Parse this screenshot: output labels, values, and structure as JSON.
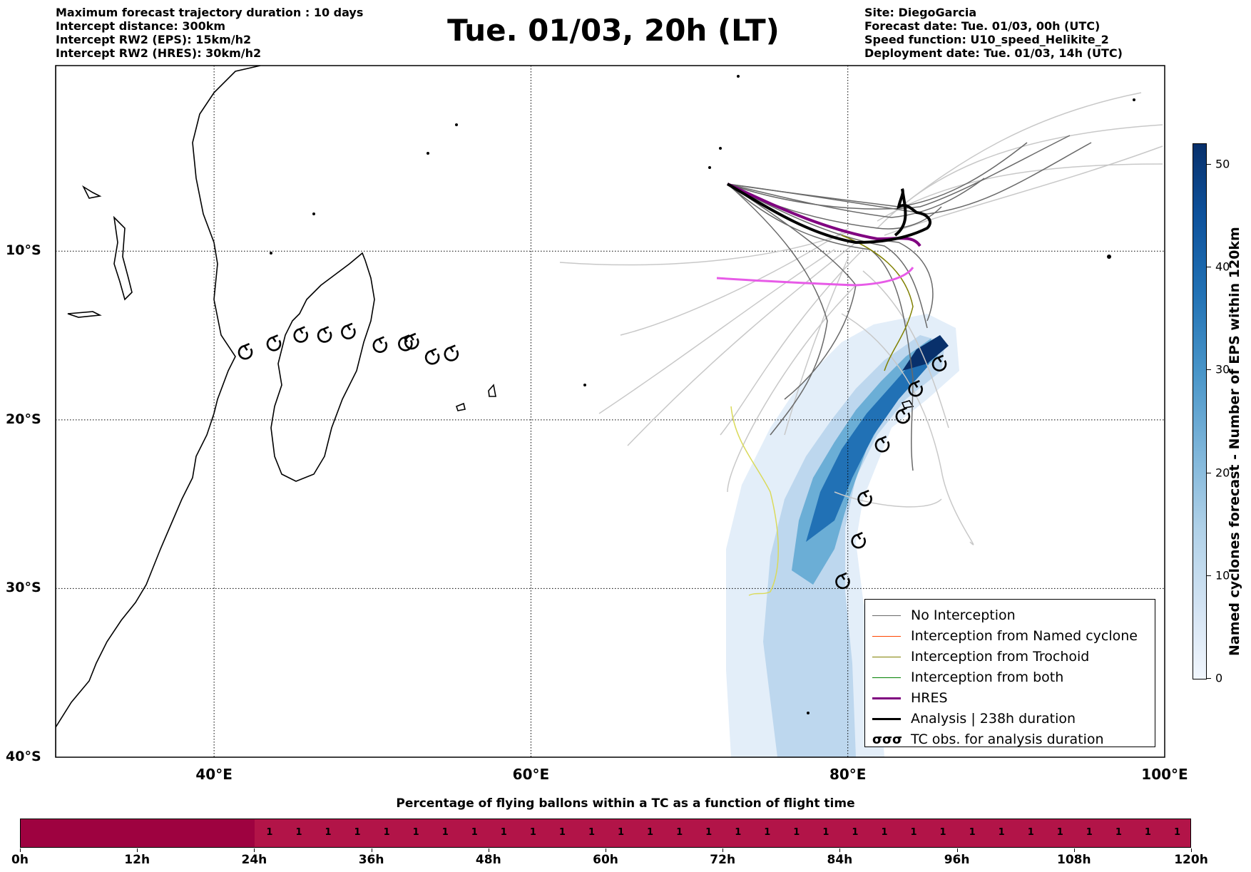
{
  "header": {
    "left": [
      "Maximum forecast trajectory duration : 10 days",
      "Intercept distance: 300km",
      "Intercept RW2 (EPS):  15km/h2",
      "Intercept RW2 (HRES): 30km/h2"
    ],
    "title": "Tue. 01/03, 20h (LT)",
    "right": [
      "Site: DiegoGarcia",
      "Forecast date: Tue. 01/03, 00h (UTC)",
      "Speed function: U10_speed_Helikite_2",
      "Deployment date: Tue. 01/03, 14h (UTC)"
    ]
  },
  "map": {
    "lon_range": [
      30,
      100
    ],
    "lat_range": [
      -40,
      1
    ],
    "lat_labels": [
      {
        "lat": -10,
        "text": "10°S"
      },
      {
        "lat": -20,
        "text": "20°S"
      },
      {
        "lat": -30,
        "text": "30°S"
      },
      {
        "lat": -40,
        "text": "40°S"
      }
    ],
    "lon_labels": [
      {
        "lon": 40,
        "text": "40°E"
      },
      {
        "lon": 60,
        "text": "60°E"
      },
      {
        "lon": 80,
        "text": "80°E"
      },
      {
        "lon": 100,
        "text": "100°E"
      }
    ],
    "colors": {
      "no_interception": "#696969",
      "named_cyclone": "#ff4500",
      "trochoid": "#808000",
      "both": "#008000",
      "hres": "#800080",
      "analysis": "#000000",
      "light_member": "#c8c8c8",
      "hres_projection": "#e75be7",
      "yellow_track": "#dada5a"
    },
    "tc_observations_analysis": [
      [
        42,
        -16
      ],
      [
        43.8,
        -15.5
      ],
      [
        45.5,
        -15
      ],
      [
        47,
        -15
      ],
      [
        48.5,
        -14.8
      ],
      [
        50.5,
        -15.6
      ],
      [
        52.1,
        -15.5
      ],
      [
        52.5,
        -15.4
      ],
      [
        53.8,
        -16.3
      ],
      [
        55,
        -16.1
      ]
    ],
    "tc_observations_eps": [
      [
        85.8,
        -16.7
      ],
      [
        84.3,
        -18.2
      ],
      [
        83.5,
        -19.8
      ],
      [
        82.2,
        -21.5
      ],
      [
        81.1,
        -24.7
      ],
      [
        80.7,
        -27.2
      ],
      [
        79.7,
        -29.6
      ]
    ]
  },
  "colorbar": {
    "title": "Named cyclones forecast - Number of EPS within 120km",
    "ticks": [
      0,
      10,
      20,
      30,
      40,
      50
    ],
    "range": [
      0,
      52
    ]
  },
  "legend": [
    {
      "label": "No Interception",
      "color": "#696969",
      "width": 1
    },
    {
      "label": "Interception from Named cyclone",
      "color": "#ff4500",
      "width": 1
    },
    {
      "label": "Interception from Trochoid",
      "color": "#808000",
      "width": 1
    },
    {
      "label": "Interception from both",
      "color": "#008000",
      "width": 1
    },
    {
      "label": "HRES",
      "color": "#800080",
      "width": 3
    },
    {
      "label": "Analysis | 238h duration",
      "color": "#000000",
      "width": 3
    },
    {
      "label": "TC obs. for analysis duration",
      "symbol": "σσσ"
    }
  ],
  "flight": {
    "title": "Percentage of flying ballons within a TC as a function of flight time",
    "max_hours": 120,
    "dark_until_hours": 24,
    "cell_value": "1",
    "cell_start": 25.5,
    "cell_step": 3,
    "cell_count": 32,
    "tick_labels": [
      "0h",
      "12h",
      "24h",
      "36h",
      "48h",
      "60h",
      "72h",
      "84h",
      "96h",
      "108h",
      "120h"
    ]
  }
}
